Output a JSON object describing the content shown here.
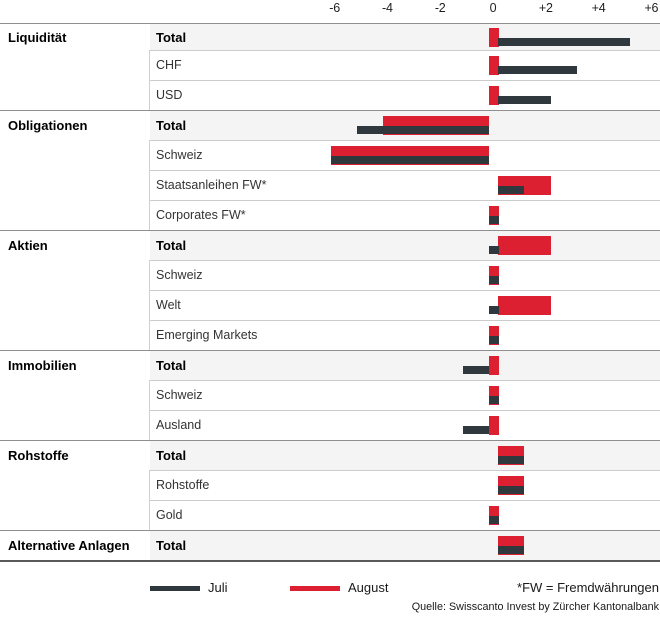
{
  "chart_data": {
    "type": "bar",
    "orientation": "horizontal",
    "title": "",
    "xlim": [
      -6,
      6
    ],
    "axis_ticks": [
      "-6",
      "-4",
      "-2",
      "0",
      "+2",
      "+4",
      "+6"
    ],
    "series_names": [
      "Juli",
      "August"
    ],
    "groups": [
      {
        "category": "Liquidität",
        "rows": [
          {
            "label": "Total",
            "total": true,
            "juli": 5,
            "august": 0
          },
          {
            "label": "CHF",
            "total": false,
            "juli": 3,
            "august": 0
          },
          {
            "label": "USD",
            "total": false,
            "juli": 2,
            "august": 0
          }
        ]
      },
      {
        "category": "Obligationen",
        "rows": [
          {
            "label": "Total",
            "total": true,
            "juli": -5,
            "august": -4
          },
          {
            "label": "Schweiz",
            "total": false,
            "juli": -6,
            "august": -6
          },
          {
            "label": "Staatsanleihen FW*",
            "total": false,
            "juli": 1,
            "august": 2
          },
          {
            "label": "Corporates FW*",
            "total": false,
            "juli": 0,
            "august": 0
          }
        ]
      },
      {
        "category": "Aktien",
        "rows": [
          {
            "label": "Total",
            "total": true,
            "juli": 0,
            "august": 2
          },
          {
            "label": "Schweiz",
            "total": false,
            "juli": 0,
            "august": 0
          },
          {
            "label": "Welt",
            "total": false,
            "juli": 0,
            "august": 2
          },
          {
            "label": "Emerging Markets",
            "total": false,
            "juli": 0,
            "august": 0
          }
        ]
      },
      {
        "category": "Immobilien",
        "rows": [
          {
            "label": "Total",
            "total": true,
            "juli": -1,
            "august": 0
          },
          {
            "label": "Schweiz",
            "total": false,
            "juli": 0,
            "august": 0
          },
          {
            "label": "Ausland",
            "total": false,
            "juli": -1,
            "august": 0
          }
        ]
      },
      {
        "category": "Rohstoffe",
        "rows": [
          {
            "label": "Total",
            "total": true,
            "juli": 1,
            "august": 1
          },
          {
            "label": "Rohstoffe",
            "total": false,
            "juli": 1,
            "august": 1
          },
          {
            "label": "Gold",
            "total": false,
            "juli": 0,
            "august": 0
          }
        ]
      },
      {
        "category": "Alternative Anlagen",
        "rows": [
          {
            "label": "Total",
            "total": true,
            "juli": 1,
            "august": 1
          }
        ]
      }
    ]
  },
  "legend": {
    "juli": "Juli",
    "august": "August",
    "note": "*FW = Fremdwährungen"
  },
  "source": "Quelle: Swisscanto Invest by Zürcher Kantonalbank",
  "colors": {
    "juli": "#2f383d",
    "august": "#dc2031",
    "total_row_bg": "#f4f4f4",
    "sub_separator": "#cccccc",
    "category_separator": "#8f8f8f"
  }
}
